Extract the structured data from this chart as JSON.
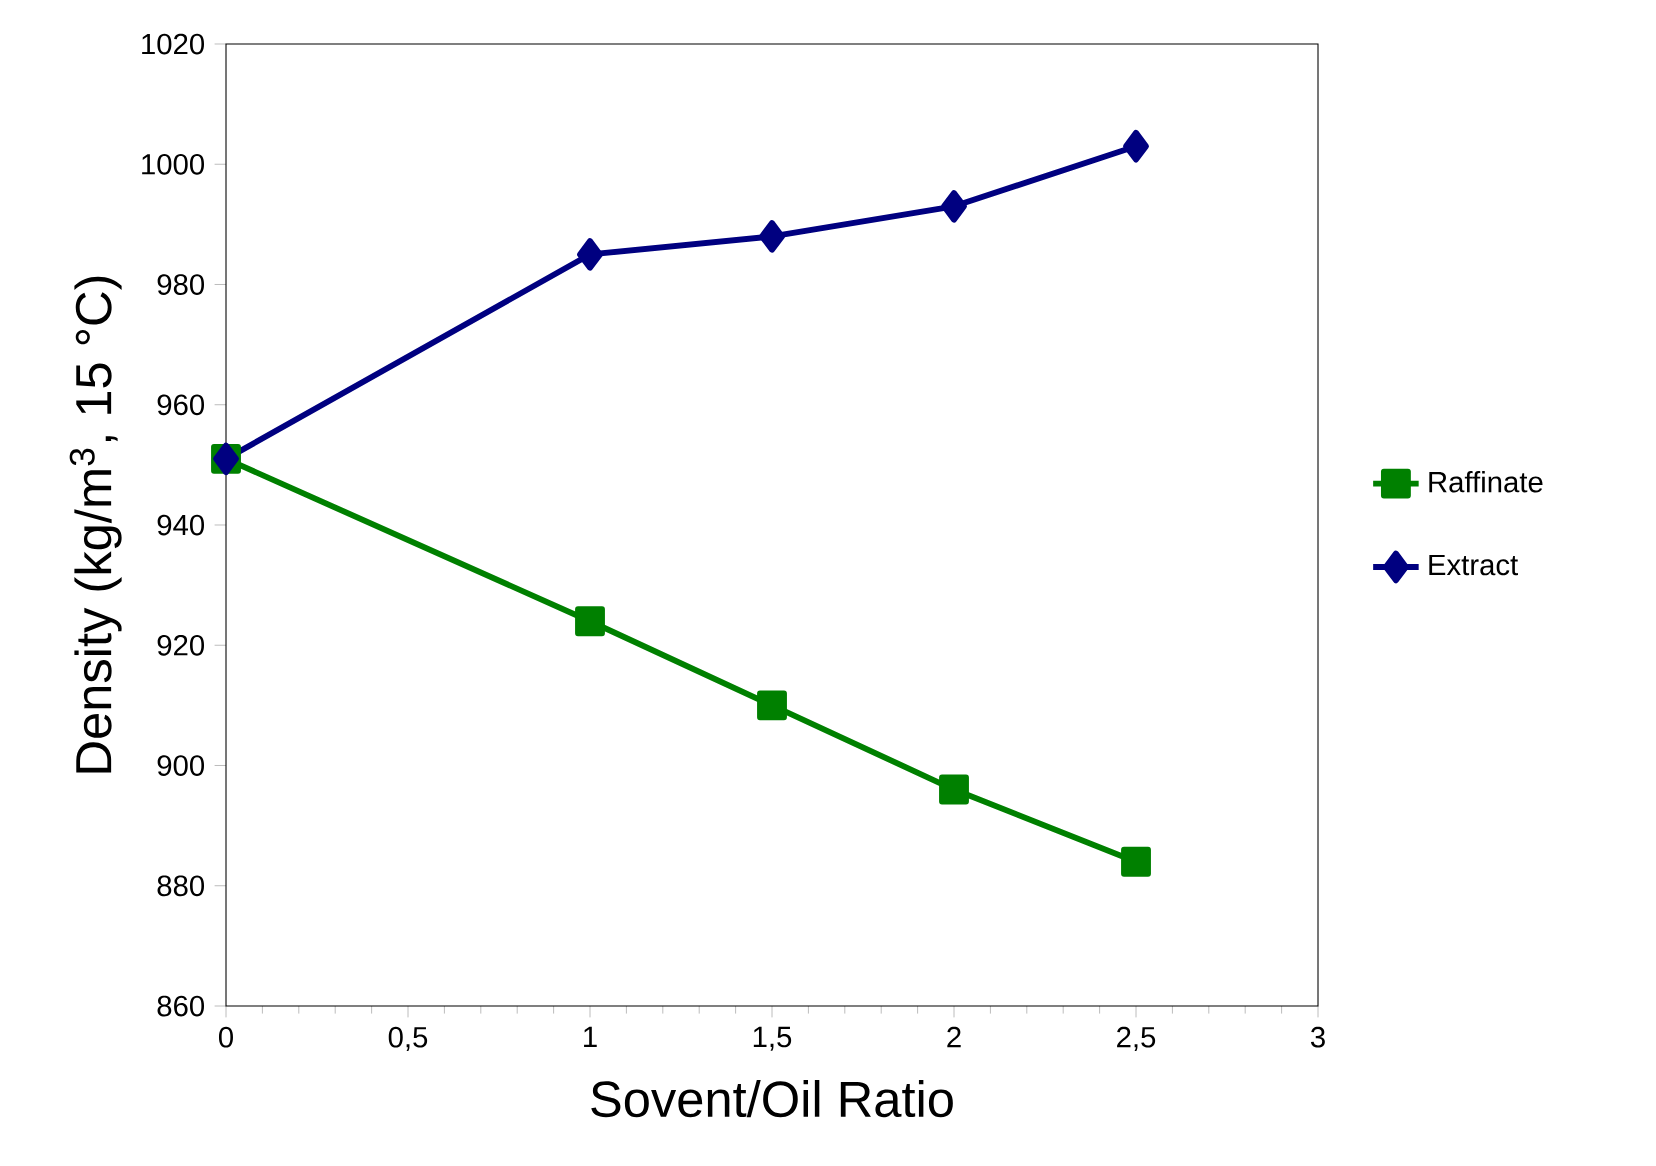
{
  "chart_data": {
    "type": "line",
    "xlabel": "Sovent/Oil Ratio",
    "ylabel": "Density (kg/m$^{3}$, 15 °C)",
    "x": [
      0,
      1,
      1.5,
      2,
      2.5
    ],
    "series": [
      {
        "name": "Raffinate",
        "color": "#008000",
        "marker": "square",
        "values": [
          951,
          924,
          910,
          896,
          884
        ]
      },
      {
        "name": "Extract",
        "color": "#000080",
        "marker": "diamond",
        "values": [
          951,
          985,
          988,
          993,
          1003
        ]
      }
    ],
    "xlim": [
      0,
      3
    ],
    "ylim": [
      860,
      1020
    ],
    "xticks": [
      0,
      {
        "value": 0.5,
        "label": "0,5"
      },
      1,
      {
        "value": 1.5,
        "label": "1,5"
      },
      2,
      {
        "value": 2.5,
        "label": "2,5"
      },
      3
    ],
    "yticks": [
      860,
      880,
      900,
      920,
      940,
      960,
      980,
      1000,
      1020
    ],
    "grid": false,
    "legend": "right",
    "line_style": "solid"
  }
}
